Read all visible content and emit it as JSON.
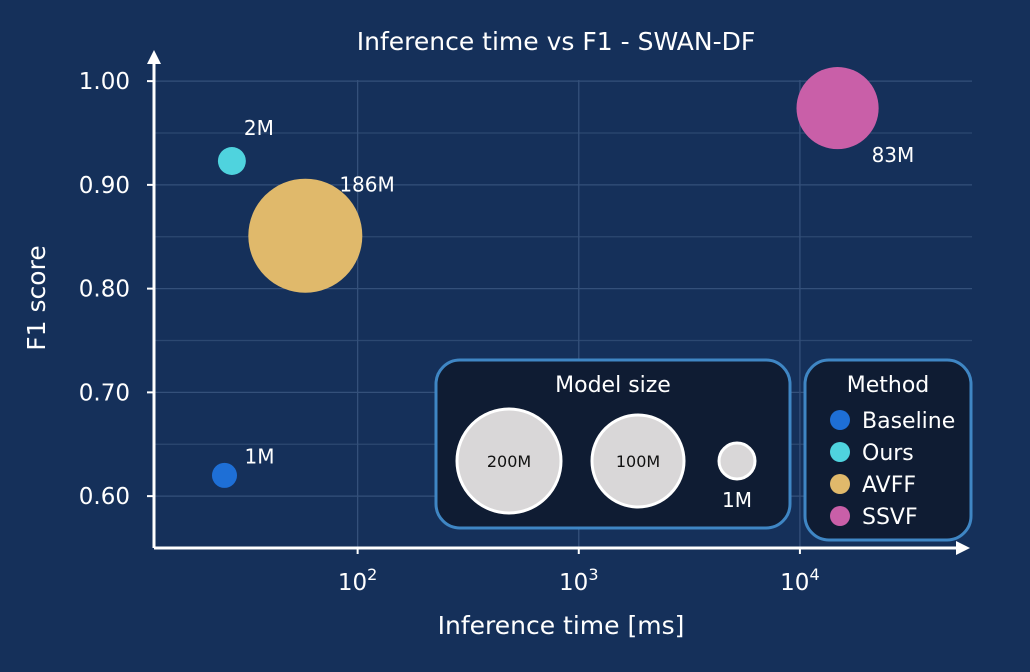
{
  "chart_data": {
    "type": "scatter",
    "title": "Inference time vs F1 - SWAN-DF",
    "xlabel": "Inference time [ms]",
    "ylabel": "F1 score",
    "x_scale": "log",
    "xlim": [
      12,
      60000
    ],
    "ylim": [
      0.55,
      1.03
    ],
    "x_ticks": [
      {
        "value": 100,
        "base": "10",
        "exp": "2"
      },
      {
        "value": 1000,
        "base": "10",
        "exp": "3"
      },
      {
        "value": 10000,
        "base": "10",
        "exp": "4"
      }
    ],
    "y_ticks": [
      {
        "value": 0.6,
        "label": "0.60"
      },
      {
        "value": 0.7,
        "label": "0.70"
      },
      {
        "value": 0.8,
        "label": "0.80"
      },
      {
        "value": 0.9,
        "label": "0.90"
      },
      {
        "value": 1.0,
        "label": "1.00"
      }
    ],
    "grid": true,
    "points": [
      {
        "method": "Baseline",
        "x": 25,
        "y": 0.62,
        "size_m": 1,
        "label": "1M",
        "color": "#1e6fd6"
      },
      {
        "method": "Ours",
        "x": 27,
        "y": 0.923,
        "size_m": 2,
        "label": "2M",
        "color": "#4fd3de"
      },
      {
        "method": "AVFF",
        "x": 58,
        "y": 0.851,
        "size_m": 186,
        "label": "186M",
        "color": "#e0b96b"
      },
      {
        "method": "SSVF",
        "x": 14800,
        "y": 0.974,
        "size_m": 83,
        "label": "83M",
        "color": "#c95fa8"
      }
    ],
    "size_legend": {
      "title": "Model size",
      "items": [
        {
          "size_m": 200,
          "label": "200M"
        },
        {
          "size_m": 100,
          "label": "100M"
        },
        {
          "size_m": 1,
          "label": "1M"
        }
      ]
    },
    "method_legend": {
      "title": "Method",
      "placement": "bottom-right",
      "items": [
        {
          "name": "Baseline",
          "color": "#1e6fd6"
        },
        {
          "name": "Ours",
          "color": "#4fd3de"
        },
        {
          "name": "AVFF",
          "color": "#e0b96b"
        },
        {
          "name": "SSVF",
          "color": "#c95fa8"
        }
      ]
    }
  }
}
